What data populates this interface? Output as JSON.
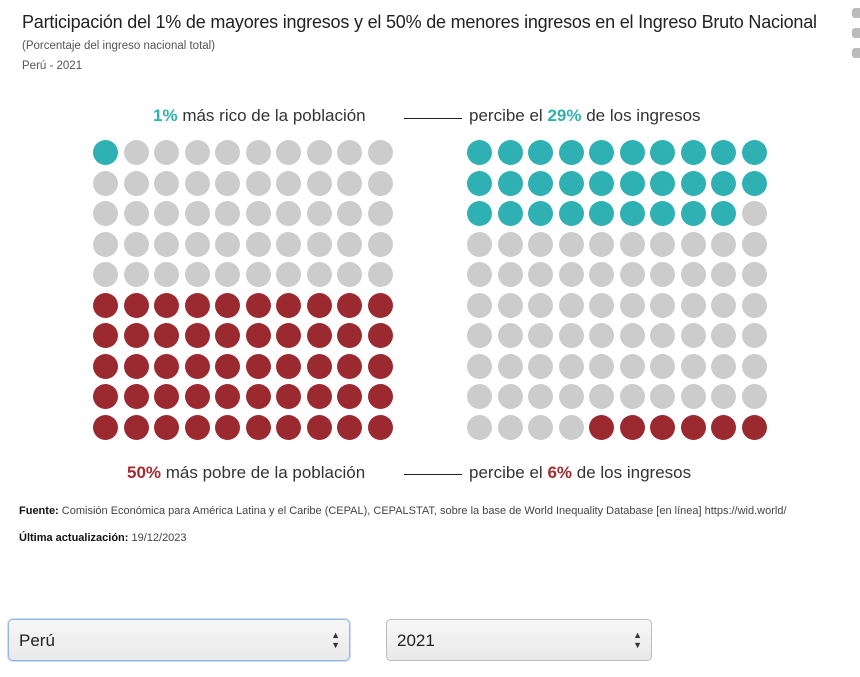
{
  "title": "Participación del 1% de mayores ingresos y el 50% de menores ingresos en el Ingreso Bruto Nacional",
  "subtitle": "(Porcentaje del ingreso nacional total)",
  "place_year": "Perú - 2021",
  "top_row": {
    "pct": "1%",
    "group_text": "más rico de la población",
    "prefix": "percibe el",
    "share": "29%",
    "suffix": "de los ingresos"
  },
  "bottom_row": {
    "pct": "50%",
    "group_text": "más pobre de la población",
    "prefix": "percibe el",
    "share": "6%",
    "suffix": "de los ingresos"
  },
  "source": {
    "label": "Fuente:",
    "text": "Comisión Económica para América Latina y el Caribe (CEPAL), CEPALSTAT, sobre la base de World Inequality Database [en línea] https://wid.world/"
  },
  "updated": {
    "label": "Última actualización:",
    "text": "19/12/2023"
  },
  "controls": {
    "country": "Perú",
    "year": "2021"
  },
  "colors": {
    "top": "#2fb0b2",
    "bottom": "#9b2a30",
    "empty": "#cccccc"
  },
  "chart_data": {
    "type": "waffle",
    "units_per_grid": 100,
    "population_grid": {
      "top_1pct_dots": 1,
      "bottom_50pct_dots": 50
    },
    "income_grid": {
      "top_1pct_share": 29,
      "bottom_50pct_share": 6
    }
  }
}
